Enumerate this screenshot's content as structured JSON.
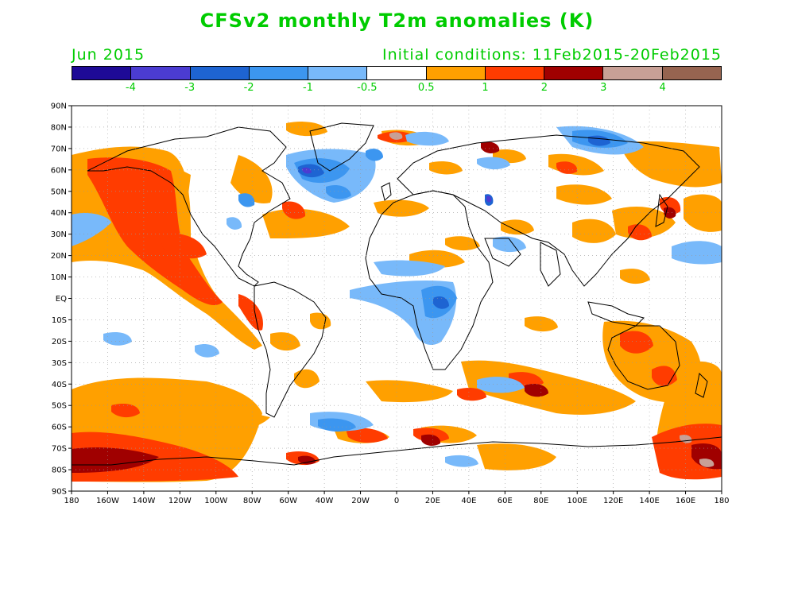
{
  "header": {
    "title": "CFSv2 monthly T2m anomalies (K)",
    "month": "Jun 2015",
    "initial_conditions": "Initial conditions: 11Feb2015-20Feb2015",
    "text_color": "#00cc00"
  },
  "colorbar": {
    "colors": [
      "#1e0a96",
      "#4b3cd2",
      "#1e64d2",
      "#3c96f0",
      "#78b9fa",
      "#ffffff",
      "#ffa000",
      "#ff3c00",
      "#a00000",
      "#c8a096",
      "#966450"
    ],
    "labels": [
      "-4",
      "-3",
      "-2",
      "-1",
      "-0.5",
      "0.5",
      "1",
      "2",
      "3",
      "4"
    ]
  },
  "axes": {
    "lat_labels": [
      "90N",
      "80N",
      "70N",
      "60N",
      "50N",
      "40N",
      "30N",
      "20N",
      "10N",
      "EQ",
      "10S",
      "20S",
      "30S",
      "40S",
      "50S",
      "60S",
      "70S",
      "80S",
      "90S"
    ],
    "lon_labels": [
      "180",
      "160W",
      "140W",
      "120W",
      "100W",
      "80W",
      "60W",
      "40W",
      "20W",
      "0",
      "20E",
      "40E",
      "60E",
      "80E",
      "100E",
      "120E",
      "140E",
      "160E",
      "180"
    ]
  }
}
